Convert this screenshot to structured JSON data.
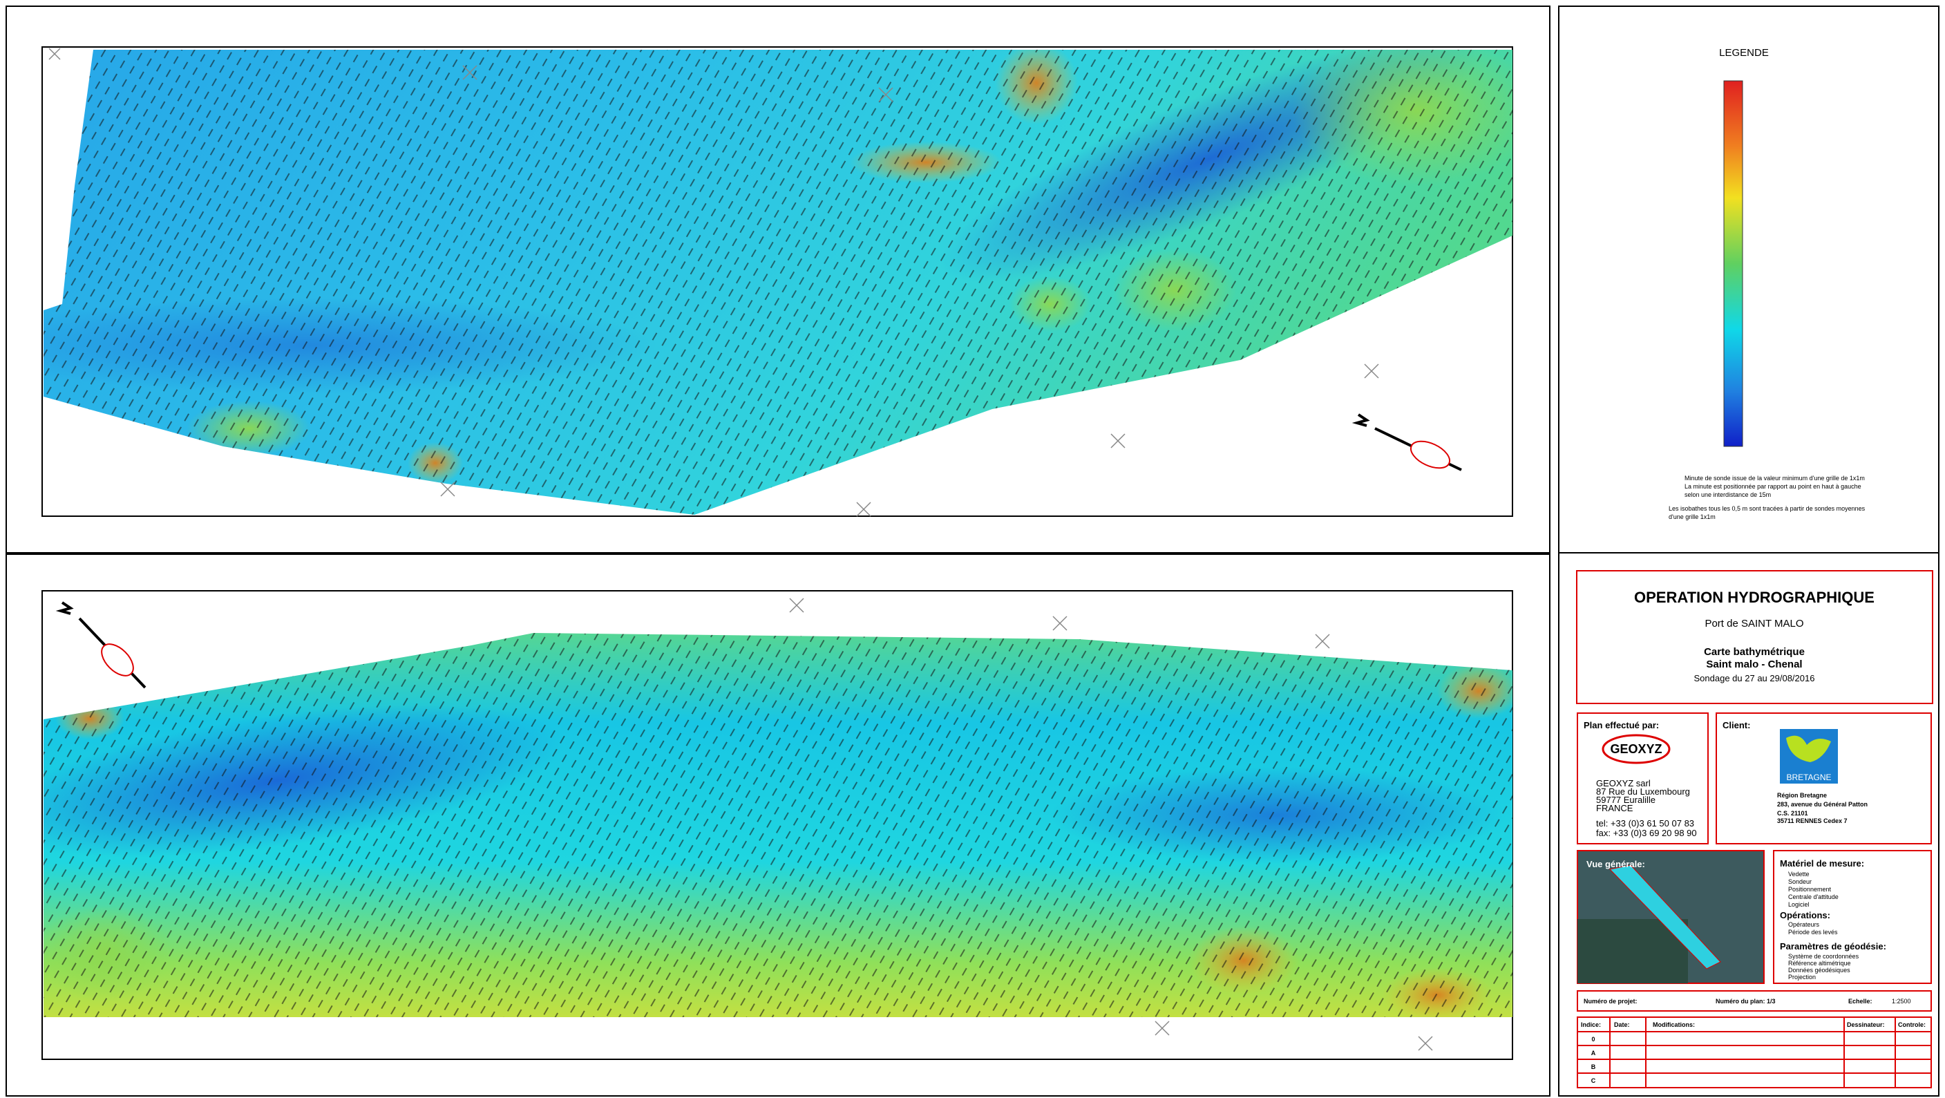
{
  "legend": {
    "title": "LEGENDE",
    "notes": [
      "Minute de sonde issue de la valeur minimum d'une grille de 1x1m",
      "La minute est positionnée par rapport au point en haut à gauche",
      "selon une interdistance de 15m",
      "Les isobathes tous les 0,5 m sont tracées à partir de sondes moyennes",
      "d'une grille 1x1m"
    ]
  },
  "title_block": {
    "title": "OPERATION HYDROGRAPHIQUE",
    "port": "Port de SAINT MALO",
    "chart": "Carte bathymétrique",
    "area": "Saint malo - Chenal",
    "survey": "Sondage du 27 au 29/08/2016"
  },
  "plan": {
    "heading": "Plan effectué par:",
    "logo": "GEOXYZ",
    "lines": [
      "GEOXYZ sarl",
      "87 Rue du Luxembourg",
      "59777 Euralille",
      "FRANCE",
      "tel: +33 (0)3 61 50 07 83",
      "fax: +33 (0)3 69 20 98 90"
    ]
  },
  "client": {
    "heading": "Client:",
    "logo": "BRETAGNE",
    "lines": [
      "Région Bretagne",
      "283, avenue du Général Patton",
      "C.S. 21101",
      "35711 RENNES Cedex 7"
    ]
  },
  "overview": {
    "heading": "Vue générale:"
  },
  "equipment": {
    "heading": "Matériel de mesure:",
    "rows": [
      "Vedette",
      "Sondeur",
      "Positionnement",
      "Centrale d'attitude",
      "Logiciel"
    ],
    "operations_heading": "Opérations:",
    "operations_rows": [
      "Opérateurs",
      "Période des levés"
    ],
    "geodesy_heading": "Paramètres de géodésie:",
    "geodesy_rows": [
      "Système de coordonnées",
      "Référence altimétrique",
      "Données géodésiques",
      "Projection"
    ]
  },
  "project_row": {
    "project": "Numéro de projet:",
    "plan_number": "Numéro du plan: 1/3",
    "scale_label": "Echelle:",
    "scale": "1:2500"
  },
  "revisions": {
    "headers": [
      "Indice:",
      "Date:",
      "Modifications:",
      "Dessinateur:",
      "Controle:"
    ],
    "indices": [
      "0",
      "A",
      "B",
      "C"
    ]
  }
}
